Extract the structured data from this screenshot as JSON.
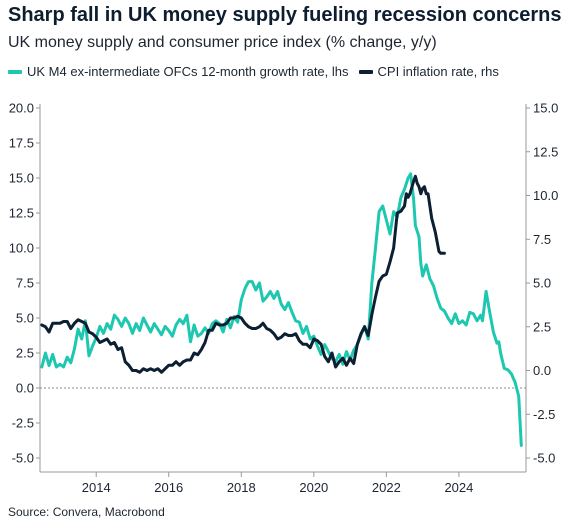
{
  "title": "Sharp fall in UK money supply fueling recession concerns",
  "subtitle": "UK money supply and consumer price index (% change, y/y)",
  "source": "Source: Convera, Macrobond",
  "colors": {
    "m4": "#1ec8b0",
    "cpi": "#0d1f33",
    "zero_line": "#888888",
    "axis": "#999999"
  },
  "chart_data": {
    "type": "line",
    "title": "Sharp fall in UK money supply fueling recession concerns",
    "subtitle": "UK money supply and consumer price index (% change, y/y)",
    "x_range": [
      2012.45,
      2025.85
    ],
    "x_ticks": [
      2014,
      2016,
      2018,
      2020,
      2022,
      2024
    ],
    "x_tick_labels": [
      "2014",
      "2016",
      "2018",
      "2020",
      "2022",
      "2024"
    ],
    "left_axis": {
      "range": [
        -5.0,
        20.0
      ],
      "ticks": [
        20.0,
        17.5,
        15.0,
        12.5,
        10.0,
        7.5,
        5.0,
        2.5,
        0.0,
        -2.5,
        -5.0
      ],
      "tick_labels": [
        "20.0",
        "17.5",
        "15.0",
        "12.5",
        "10.0",
        "7.5",
        "5.0",
        "2.5",
        "0.0",
        "-2.5",
        "-5.0"
      ]
    },
    "right_axis": {
      "range": [
        -5.0,
        15.0
      ],
      "ticks": [
        15.0,
        12.5,
        10.0,
        7.5,
        5.0,
        2.5,
        0.0,
        -2.5,
        -5.0
      ],
      "tick_labels": [
        "15.0",
        "12.5",
        "10.0",
        "7.5",
        "5.0",
        "2.5",
        "0.0",
        "-2.5",
        "-5.0"
      ]
    },
    "zero_line": {
      "axis": "left",
      "value": 0.0,
      "style": "dotted"
    },
    "legend_placement": "top-left",
    "series": [
      {
        "name": "UK M4 ex-intermediate OFCs 12-month growth rate, lhs",
        "axis": "left",
        "color": "#1ec8b0",
        "points": [
          [
            2012.5,
            1.5
          ],
          [
            2012.6,
            2.5
          ],
          [
            2012.7,
            1.6
          ],
          [
            2012.8,
            2.4
          ],
          [
            2012.9,
            1.5
          ],
          [
            2013.0,
            1.7
          ],
          [
            2013.1,
            1.5
          ],
          [
            2013.2,
            2.2
          ],
          [
            2013.3,
            1.8
          ],
          [
            2013.4,
            2.8
          ],
          [
            2013.5,
            4.2
          ],
          [
            2013.6,
            3.5
          ],
          [
            2013.7,
            4.8
          ],
          [
            2013.8,
            2.3
          ],
          [
            2013.9,
            3.0
          ],
          [
            2014.0,
            3.6
          ],
          [
            2014.1,
            4.4
          ],
          [
            2014.2,
            3.9
          ],
          [
            2014.3,
            4.6
          ],
          [
            2014.4,
            4.2
          ],
          [
            2014.5,
            5.2
          ],
          [
            2014.6,
            4.9
          ],
          [
            2014.7,
            4.4
          ],
          [
            2014.8,
            5.0
          ],
          [
            2014.9,
            4.6
          ],
          [
            2015.0,
            3.9
          ],
          [
            2015.1,
            4.6
          ],
          [
            2015.2,
            4.1
          ],
          [
            2015.3,
            5.0
          ],
          [
            2015.4,
            4.5
          ],
          [
            2015.5,
            4.0
          ],
          [
            2015.6,
            4.6
          ],
          [
            2015.7,
            4.2
          ],
          [
            2015.8,
            3.8
          ],
          [
            2015.9,
            4.4
          ],
          [
            2016.0,
            4.1
          ],
          [
            2016.1,
            3.7
          ],
          [
            2016.2,
            4.5
          ],
          [
            2016.3,
            4.9
          ],
          [
            2016.4,
            4.6
          ],
          [
            2016.5,
            5.2
          ],
          [
            2016.6,
            3.3
          ],
          [
            2016.7,
            4.5
          ],
          [
            2016.8,
            3.7
          ],
          [
            2016.9,
            3.9
          ],
          [
            2017.0,
            4.3
          ],
          [
            2017.1,
            3.9
          ],
          [
            2017.2,
            4.6
          ],
          [
            2017.3,
            4.8
          ],
          [
            2017.4,
            4.6
          ],
          [
            2017.5,
            4.0
          ],
          [
            2017.6,
            4.9
          ],
          [
            2017.7,
            4.3
          ],
          [
            2017.8,
            5.1
          ],
          [
            2017.9,
            4.7
          ],
          [
            2018.0,
            6.3
          ],
          [
            2018.1,
            7.1
          ],
          [
            2018.2,
            7.6
          ],
          [
            2018.3,
            7.6
          ],
          [
            2018.4,
            7.0
          ],
          [
            2018.5,
            7.5
          ],
          [
            2018.6,
            6.2
          ],
          [
            2018.7,
            6.5
          ],
          [
            2018.8,
            6.9
          ],
          [
            2018.9,
            6.4
          ],
          [
            2019.0,
            6.9
          ],
          [
            2019.1,
            6.0
          ],
          [
            2019.2,
            5.6
          ],
          [
            2019.3,
            6.1
          ],
          [
            2019.4,
            5.4
          ],
          [
            2019.5,
            4.8
          ],
          [
            2019.6,
            4.7
          ],
          [
            2019.7,
            3.9
          ],
          [
            2019.8,
            4.4
          ],
          [
            2019.9,
            3.5
          ],
          [
            2020.0,
            3.7
          ],
          [
            2020.1,
            3.0
          ],
          [
            2020.2,
            2.4
          ],
          [
            2020.3,
            3.1
          ],
          [
            2020.4,
            2.6
          ],
          [
            2020.5,
            2.1
          ],
          [
            2020.6,
            1.9
          ],
          [
            2020.7,
            2.4
          ],
          [
            2020.8,
            1.7
          ],
          [
            2020.9,
            2.6
          ],
          [
            2021.0,
            2.0
          ],
          [
            2021.1,
            2.7
          ],
          [
            2021.2,
            3.1
          ],
          [
            2021.3,
            3.8
          ],
          [
            2021.4,
            4.4
          ],
          [
            2021.5,
            3.5
          ],
          [
            2021.6,
            7.5
          ],
          [
            2021.7,
            10.0
          ],
          [
            2021.8,
            12.6
          ],
          [
            2021.9,
            13.0
          ],
          [
            2022.0,
            12.0
          ],
          [
            2022.1,
            11.0
          ],
          [
            2022.2,
            12.6
          ],
          [
            2022.3,
            12.2
          ],
          [
            2022.4,
            13.6
          ],
          [
            2022.5,
            14.2
          ],
          [
            2022.6,
            15.0
          ],
          [
            2022.67,
            15.3
          ],
          [
            2022.75,
            13.5
          ],
          [
            2022.8,
            11.6
          ],
          [
            2022.9,
            10.8
          ],
          [
            2022.95,
            8.9
          ],
          [
            2023.0,
            8.0
          ],
          [
            2023.1,
            8.8
          ],
          [
            2023.2,
            7.8
          ],
          [
            2023.3,
            7.3
          ],
          [
            2023.4,
            6.4
          ],
          [
            2023.5,
            5.7
          ],
          [
            2023.6,
            5.5
          ],
          [
            2023.7,
            5.0
          ],
          [
            2023.8,
            4.6
          ],
          [
            2023.9,
            5.3
          ],
          [
            2024.0,
            4.6
          ],
          [
            2024.1,
            4.8
          ],
          [
            2024.2,
            4.5
          ],
          [
            2024.3,
            5.4
          ],
          [
            2024.4,
            5.3
          ],
          [
            2024.5,
            4.8
          ],
          [
            2024.6,
            5.2
          ],
          [
            2024.65,
            4.8
          ],
          [
            2024.75,
            6.9
          ],
          [
            2024.85,
            5.4
          ],
          [
            2024.95,
            4.0
          ],
          [
            2025.05,
            3.2
          ],
          [
            2025.1,
            3.3
          ],
          [
            2025.15,
            2.5
          ],
          [
            2025.25,
            1.4
          ],
          [
            2025.35,
            1.3
          ],
          [
            2025.45,
            1.0
          ],
          [
            2025.55,
            0.4
          ],
          [
            2025.65,
            -0.6
          ],
          [
            2025.72,
            -4.1
          ]
        ]
      },
      {
        "name": "CPI inflation rate, rhs",
        "axis": "right",
        "color": "#0d1f33",
        "points": [
          [
            2012.5,
            2.6
          ],
          [
            2012.6,
            2.5
          ],
          [
            2012.7,
            2.2
          ],
          [
            2012.8,
            2.7
          ],
          [
            2012.9,
            2.7
          ],
          [
            2013.0,
            2.7
          ],
          [
            2013.1,
            2.8
          ],
          [
            2013.2,
            2.8
          ],
          [
            2013.3,
            2.4
          ],
          [
            2013.4,
            2.7
          ],
          [
            2013.5,
            2.9
          ],
          [
            2013.6,
            2.8
          ],
          [
            2013.7,
            2.7
          ],
          [
            2013.8,
            2.2
          ],
          [
            2013.9,
            2.1
          ],
          [
            2014.0,
            1.9
          ],
          [
            2014.1,
            1.6
          ],
          [
            2014.2,
            1.7
          ],
          [
            2014.3,
            1.8
          ],
          [
            2014.4,
            1.5
          ],
          [
            2014.5,
            1.6
          ],
          [
            2014.6,
            1.2
          ],
          [
            2014.7,
            1.3
          ],
          [
            2014.8,
            0.5
          ],
          [
            2014.9,
            0.3
          ],
          [
            2015.0,
            0.0
          ],
          [
            2015.1,
            0.0
          ],
          [
            2015.2,
            -0.1
          ],
          [
            2015.3,
            0.1
          ],
          [
            2015.4,
            0.0
          ],
          [
            2015.5,
            0.1
          ],
          [
            2015.6,
            0.0
          ],
          [
            2015.7,
            0.1
          ],
          [
            2015.8,
            -0.1
          ],
          [
            2015.9,
            0.1
          ],
          [
            2016.0,
            0.3
          ],
          [
            2016.1,
            0.3
          ],
          [
            2016.2,
            0.5
          ],
          [
            2016.3,
            0.3
          ],
          [
            2016.4,
            0.5
          ],
          [
            2016.5,
            0.6
          ],
          [
            2016.6,
            0.6
          ],
          [
            2016.7,
            1.0
          ],
          [
            2016.8,
            0.9
          ],
          [
            2016.9,
            1.2
          ],
          [
            2017.0,
            1.6
          ],
          [
            2017.1,
            2.3
          ],
          [
            2017.2,
            2.3
          ],
          [
            2017.3,
            2.7
          ],
          [
            2017.4,
            2.6
          ],
          [
            2017.5,
            2.6
          ],
          [
            2017.6,
            2.7
          ],
          [
            2017.7,
            3.0
          ],
          [
            2017.8,
            3.0
          ],
          [
            2017.9,
            3.1
          ],
          [
            2018.0,
            3.0
          ],
          [
            2018.1,
            2.7
          ],
          [
            2018.2,
            2.5
          ],
          [
            2018.3,
            2.4
          ],
          [
            2018.4,
            2.4
          ],
          [
            2018.5,
            2.5
          ],
          [
            2018.6,
            2.7
          ],
          [
            2018.7,
            2.4
          ],
          [
            2018.8,
            2.3
          ],
          [
            2018.9,
            2.1
          ],
          [
            2019.0,
            1.8
          ],
          [
            2019.1,
            1.9
          ],
          [
            2019.2,
            2.1
          ],
          [
            2019.3,
            2.0
          ],
          [
            2019.4,
            2.0
          ],
          [
            2019.5,
            2.1
          ],
          [
            2019.6,
            1.7
          ],
          [
            2019.7,
            1.5
          ],
          [
            2019.8,
            1.5
          ],
          [
            2019.9,
            1.3
          ],
          [
            2020.0,
            1.8
          ],
          [
            2020.1,
            1.7
          ],
          [
            2020.2,
            1.5
          ],
          [
            2020.3,
            0.8
          ],
          [
            2020.4,
            0.5
          ],
          [
            2020.5,
            1.0
          ],
          [
            2020.6,
            0.2
          ],
          [
            2020.7,
            0.5
          ],
          [
            2020.8,
            0.7
          ],
          [
            2020.9,
            0.3
          ],
          [
            2021.0,
            0.7
          ],
          [
            2021.1,
            0.4
          ],
          [
            2021.2,
            1.5
          ],
          [
            2021.3,
            2.1
          ],
          [
            2021.4,
            2.5
          ],
          [
            2021.5,
            2.0
          ],
          [
            2021.6,
            3.2
          ],
          [
            2021.7,
            4.2
          ],
          [
            2021.8,
            5.1
          ],
          [
            2021.9,
            5.4
          ],
          [
            2022.0,
            5.5
          ],
          [
            2022.1,
            6.2
          ],
          [
            2022.2,
            7.0
          ],
          [
            2022.3,
            9.0
          ],
          [
            2022.4,
            9.1
          ],
          [
            2022.5,
            9.4
          ],
          [
            2022.55,
            10.1
          ],
          [
            2022.6,
            9.9
          ],
          [
            2022.65,
            10.1
          ],
          [
            2022.75,
            10.8
          ],
          [
            2022.8,
            11.1
          ],
          [
            2022.85,
            10.7
          ],
          [
            2022.9,
            10.5
          ],
          [
            2022.95,
            10.1
          ],
          [
            2023.0,
            10.4
          ],
          [
            2023.05,
            10.5
          ],
          [
            2023.1,
            10.1
          ],
          [
            2023.15,
            10.1
          ],
          [
            2023.25,
            8.7
          ],
          [
            2023.35,
            7.9
          ],
          [
            2023.45,
            6.8
          ],
          [
            2023.5,
            6.7
          ],
          [
            2023.6,
            6.7
          ]
        ]
      }
    ]
  }
}
